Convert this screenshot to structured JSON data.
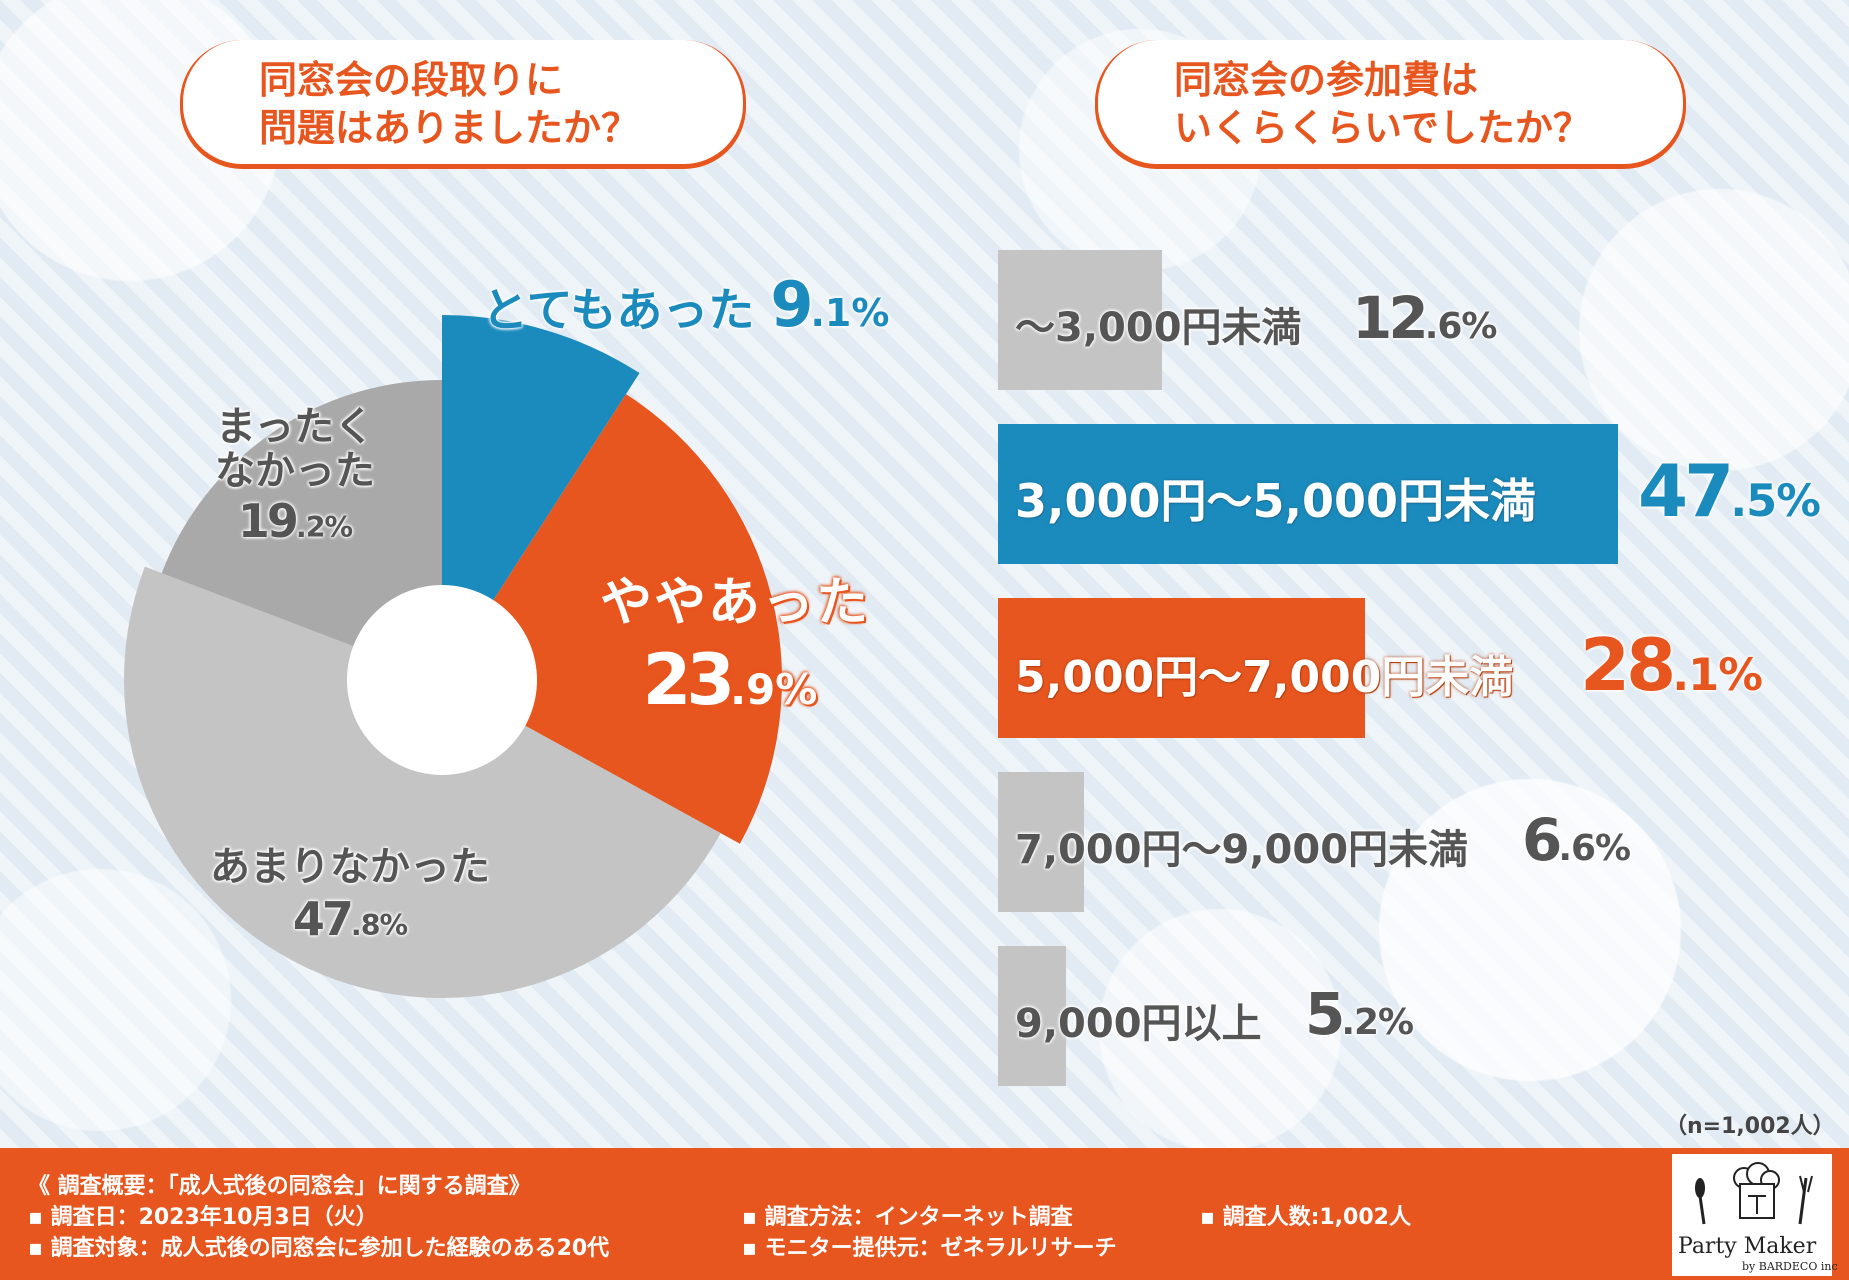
{
  "left_title": {
    "line1": "同窓会の段取りに",
    "line2": "問題はありましたか？"
  },
  "right_title": {
    "line1": "同窓会の参加費は",
    "line2": "いくらくらいでしたか？"
  },
  "chart_data": [
    {
      "type": "pie",
      "title": "同窓会の段取りに問題はありましたか？",
      "slices": [
        {
          "label": "とてもあった",
          "value": 9.1,
          "pct_int": "9",
          "pct_dec": ".1%",
          "color": "#1b8bbd"
        },
        {
          "label": "ややあった",
          "value": 23.9,
          "pct_int": "23",
          "pct_dec": ".9%",
          "color": "#e8561f"
        },
        {
          "label": "あまりなかった",
          "value": 47.8,
          "pct_int": "47",
          "pct_dec": ".8%",
          "color": "#c4c4c4"
        },
        {
          "label": "まったくなかった",
          "label_lines": [
            "まったく",
            "なかった"
          ],
          "value": 19.2,
          "pct_int": "19",
          "pct_dec": ".2%",
          "color": "#a9a9a9"
        }
      ]
    },
    {
      "type": "bar",
      "orientation": "horizontal",
      "title": "同窓会の参加費はいくらくらいでしたか？",
      "categories": [
        "〜3,000円未満",
        "3,000円〜5,000円未満",
        "5,000円〜7,000円未満",
        "7,000円〜9,000円未満",
        "9,000円以上"
      ],
      "values": [
        12.6,
        47.5,
        28.1,
        6.6,
        5.2
      ],
      "pct_int": [
        "12",
        "47",
        "28",
        "6",
        "5"
      ],
      "pct_dec": [
        ".6%",
        ".5%",
        ".1%",
        ".6%",
        ".2%"
      ],
      "colors": [
        "#c4c4c4",
        "#1b8bbd",
        "#e8561f",
        "#c4c4c4",
        "#c4c4c4"
      ]
    }
  ],
  "sample_note": "（n=1,002人）",
  "footer": {
    "heading": "《 調査概要：「成人式後の同窓会」に関する調査》",
    "date": "▪ 調査日：2023年10月3日（火）",
    "target": "▪ 調査対象：成人式後の同窓会に参加した経験のある20代",
    "method": "▪ 調査方法：インターネット調査",
    "provider": "▪ モニター提供元：ゼネラルリサーチ",
    "count": "▪ 調査人数:1,002人"
  },
  "logo": {
    "name": "Party Maker",
    "sub": "by BARDECO inc"
  }
}
